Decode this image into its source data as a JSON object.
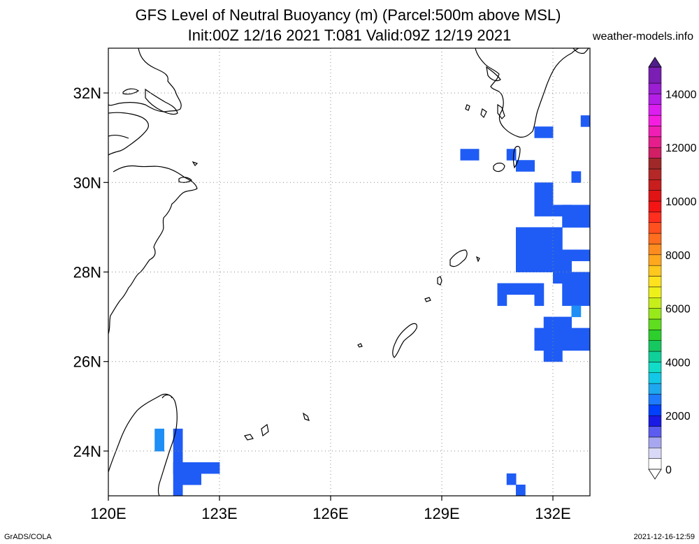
{
  "title": {
    "line1": "GFS Level of Neutral Buoyancy (m) (Parcel:500m above MSL)",
    "line2": "Init:00Z 12/16 2021 T:081 Valid:09Z 12/19 2021"
  },
  "site": "weather-models.info",
  "footer": {
    "left": "GrADS/COLA",
    "right": "2021-12-16-12:59"
  },
  "map": {
    "lon_range": [
      120,
      133
    ],
    "lat_range": [
      23,
      33
    ],
    "x_ticks": [
      {
        "value": 120,
        "label": "120E"
      },
      {
        "value": 123,
        "label": "123E"
      },
      {
        "value": 126,
        "label": "126E"
      },
      {
        "value": 129,
        "label": "129E"
      },
      {
        "value": 132,
        "label": "132E"
      }
    ],
    "y_ticks": [
      {
        "value": 24,
        "label": "24N"
      },
      {
        "value": 26,
        "label": "26N"
      },
      {
        "value": 28,
        "label": "28N"
      },
      {
        "value": 30,
        "label": "30N"
      },
      {
        "value": 32,
        "label": "32N"
      }
    ],
    "grid": true,
    "cell_size_deg": 0.5,
    "cells": [
      [
        131.5,
        31.0,
        0.5,
        0.25,
        1800
      ],
      [
        132.75,
        31.25,
        0.25,
        0.25,
        1800
      ],
      [
        129.5,
        30.5,
        0.5,
        0.25,
        1800
      ],
      [
        130.75,
        30.5,
        0.25,
        0.25,
        1800
      ],
      [
        131.0,
        30.25,
        0.5,
        0.25,
        1800
      ],
      [
        132.5,
        30.0,
        0.25,
        0.25,
        1800
      ],
      [
        131.5,
        29.5,
        0.5,
        0.5,
        1800
      ],
      [
        131.5,
        29.25,
        1.0,
        0.25,
        1800
      ],
      [
        132.25,
        29.0,
        0.75,
        0.5,
        1800
      ],
      [
        131.0,
        28.0,
        0.75,
        1.0,
        1800
      ],
      [
        131.75,
        28.5,
        0.5,
        0.5,
        1800
      ],
      [
        131.5,
        28.0,
        1.0,
        0.5,
        1800
      ],
      [
        132.5,
        28.25,
        0.5,
        0.25,
        1800
      ],
      [
        132.0,
        27.75,
        1.0,
        0.25,
        1800
      ],
      [
        130.5,
        27.25,
        0.25,
        0.5,
        1800
      ],
      [
        130.75,
        27.5,
        1.0,
        0.25,
        1800
      ],
      [
        131.5,
        27.25,
        0.25,
        0.25,
        1800
      ],
      [
        132.25,
        27.25,
        0.75,
        0.5,
        1800
      ],
      [
        132.5,
        27.0,
        0.25,
        0.25,
        2600
      ],
      [
        131.75,
        26.75,
        0.75,
        0.25,
        1800
      ],
      [
        131.5,
        26.25,
        1.5,
        0.5,
        1800
      ],
      [
        131.75,
        26.0,
        0.5,
        0.25,
        1800
      ],
      [
        121.25,
        24.0,
        0.25,
        0.5,
        2600
      ],
      [
        121.75,
        24.25,
        0.25,
        0.25,
        1800
      ],
      [
        121.75,
        23.5,
        0.25,
        0.75,
        1800
      ],
      [
        121.75,
        23.5,
        1.25,
        0.25,
        1800
      ],
      [
        121.75,
        23.25,
        0.75,
        0.25,
        1800
      ],
      [
        121.75,
        23.0,
        0.25,
        0.25,
        1800
      ],
      [
        130.75,
        23.25,
        0.25,
        0.25,
        1800
      ],
      [
        131.0,
        23.0,
        0.25,
        0.25,
        1800
      ]
    ],
    "colors": {
      "cell": "#1f5cf5",
      "cell_light": "#1f8ef5",
      "coast": "#000000",
      "grid": "#8a8a8a"
    }
  },
  "colorbar": {
    "min": 0,
    "max": 15000,
    "ticks": [
      {
        "value": 0,
        "label": "0"
      },
      {
        "value": 2000,
        "label": "2000"
      },
      {
        "value": 4000,
        "label": "4000"
      },
      {
        "value": 6000,
        "label": "6000"
      },
      {
        "value": 8000,
        "label": "8000"
      },
      {
        "value": 10000,
        "label": "10000"
      },
      {
        "value": 12000,
        "label": "12000"
      },
      {
        "value": 14000,
        "label": "14000"
      }
    ],
    "stops": [
      [
        0,
        "#ffffff"
      ],
      [
        400,
        "#d9d9f7"
      ],
      [
        800,
        "#a7a7f0"
      ],
      [
        1200,
        "#5c5cf0"
      ],
      [
        1600,
        "#1a1ae6"
      ],
      [
        2000,
        "#0040ff"
      ],
      [
        2400,
        "#1e7bff"
      ],
      [
        2800,
        "#1ea8f0"
      ],
      [
        3200,
        "#12c8e6"
      ],
      [
        3600,
        "#10dcc8"
      ],
      [
        4000,
        "#0fd098"
      ],
      [
        4400,
        "#16c860"
      ],
      [
        4800,
        "#2ccf2c"
      ],
      [
        5200,
        "#5ede1e"
      ],
      [
        5600,
        "#98e81a"
      ],
      [
        6000,
        "#c8ee1a"
      ],
      [
        6400,
        "#eef01a"
      ],
      [
        6800,
        "#ffe21e"
      ],
      [
        7200,
        "#ffc81e"
      ],
      [
        7600,
        "#ffa81e"
      ],
      [
        8000,
        "#ff8c1e"
      ],
      [
        8400,
        "#ff6e1e"
      ],
      [
        8800,
        "#ff501e"
      ],
      [
        9200,
        "#ff2e1e"
      ],
      [
        9600,
        "#f51414"
      ],
      [
        10000,
        "#e01414"
      ],
      [
        10400,
        "#c81e1e"
      ],
      [
        10800,
        "#b42828"
      ],
      [
        11200,
        "#a02828"
      ],
      [
        11600,
        "#d21e64"
      ],
      [
        12000,
        "#e61e8c"
      ],
      [
        12400,
        "#f01eb4"
      ],
      [
        12800,
        "#f51ee0"
      ],
      [
        13200,
        "#dc1ef0"
      ],
      [
        13600,
        "#b41ee6"
      ],
      [
        14000,
        "#9a1ed2"
      ],
      [
        14400,
        "#7a1eb4"
      ],
      [
        15000,
        "#501e8c"
      ]
    ]
  }
}
